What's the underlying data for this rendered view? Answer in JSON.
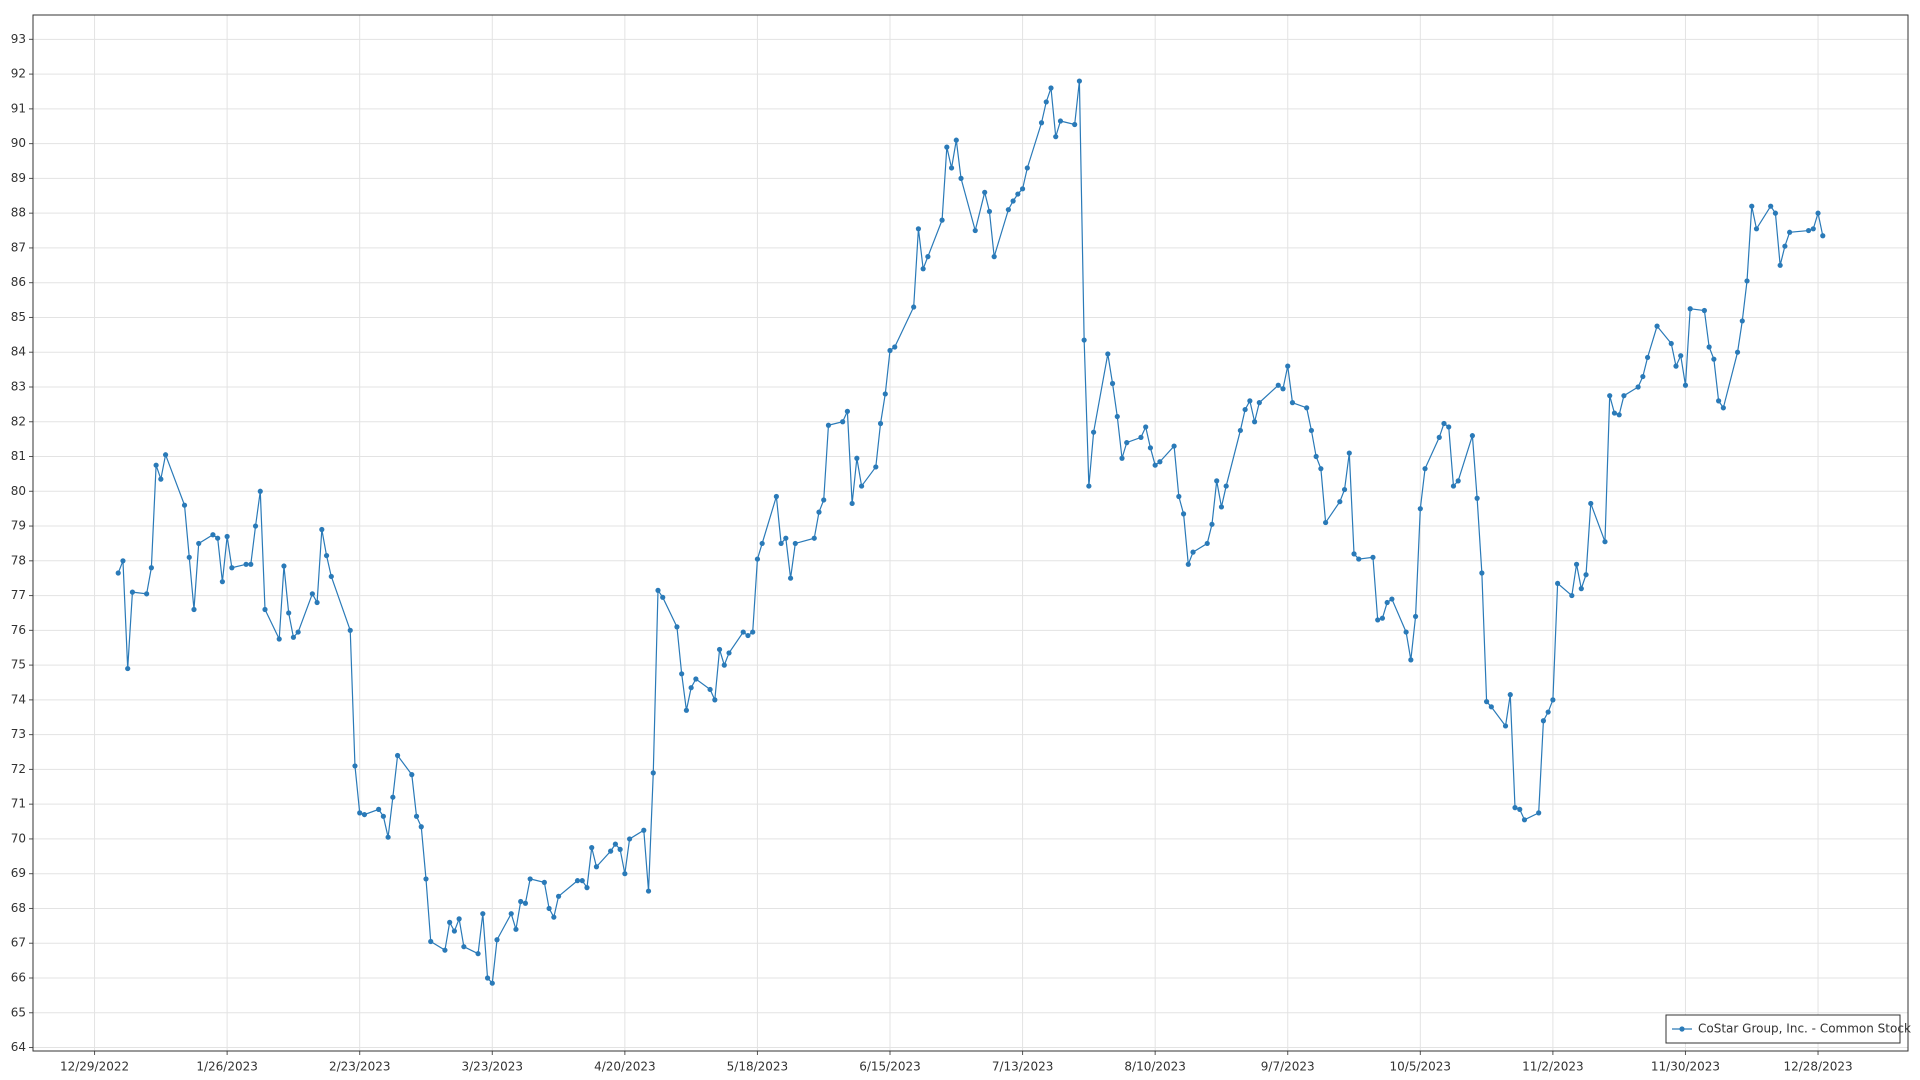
{
  "chart_data": {
    "type": "line",
    "grid": true,
    "legend": "lower right",
    "xlim": [
      "12/16/2022",
      "1/16/2024"
    ],
    "xticks": [
      "12/29/2022",
      "1/26/2023",
      "2/23/2023",
      "3/23/2023",
      "4/20/2023",
      "5/18/2023",
      "6/15/2023",
      "7/13/2023",
      "8/10/2023",
      "9/7/2023",
      "10/5/2023",
      "11/2/2023",
      "11/30/2023",
      "12/28/2023"
    ],
    "ylim": [
      63.9,
      93.7
    ],
    "yticks": [
      64,
      65,
      66,
      67,
      68,
      69,
      70,
      71,
      72,
      73,
      74,
      75,
      76,
      77,
      78,
      79,
      80,
      81,
      82,
      83,
      84,
      85,
      86,
      87,
      88,
      89,
      90,
      91,
      92,
      93
    ],
    "x": [
      "1/3/2023",
      "1/4/2023",
      "1/5/2023",
      "1/6/2023",
      "1/9/2023",
      "1/10/2023",
      "1/11/2023",
      "1/12/2023",
      "1/13/2023",
      "1/17/2023",
      "1/18/2023",
      "1/19/2023",
      "1/20/2023",
      "1/23/2023",
      "1/24/2023",
      "1/25/2023",
      "1/26/2023",
      "1/27/2023",
      "1/30/2023",
      "1/31/2023",
      "2/1/2023",
      "2/2/2023",
      "2/3/2023",
      "2/6/2023",
      "2/7/2023",
      "2/8/2023",
      "2/9/2023",
      "2/10/2023",
      "2/13/2023",
      "2/14/2023",
      "2/15/2023",
      "2/16/2023",
      "2/17/2023",
      "2/21/2023",
      "2/22/2023",
      "2/23/2023",
      "2/24/2023",
      "2/27/2023",
      "2/28/2023",
      "3/1/2023",
      "3/2/2023",
      "3/3/2023",
      "3/6/2023",
      "3/7/2023",
      "3/8/2023",
      "3/9/2023",
      "3/10/2023",
      "3/13/2023",
      "3/14/2023",
      "3/15/2023",
      "3/16/2023",
      "3/17/2023",
      "3/20/2023",
      "3/21/2023",
      "3/22/2023",
      "3/23/2023",
      "3/24/2023",
      "3/27/2023",
      "3/28/2023",
      "3/29/2023",
      "3/30/2023",
      "3/31/2023",
      "4/3/2023",
      "4/4/2023",
      "4/5/2023",
      "4/6/2023",
      "4/10/2023",
      "4/11/2023",
      "4/12/2023",
      "4/13/2023",
      "4/14/2023",
      "4/17/2023",
      "4/18/2023",
      "4/19/2023",
      "4/20/2023",
      "4/21/2023",
      "4/24/2023",
      "4/25/2023",
      "4/26/2023",
      "4/27/2023",
      "4/28/2023",
      "5/1/2023",
      "5/2/2023",
      "5/3/2023",
      "5/4/2023",
      "5/5/2023",
      "5/8/2023",
      "5/9/2023",
      "5/10/2023",
      "5/11/2023",
      "5/12/2023",
      "5/15/2023",
      "5/16/2023",
      "5/17/2023",
      "5/18/2023",
      "5/19/2023",
      "5/22/2023",
      "5/23/2023",
      "5/24/2023",
      "5/25/2023",
      "5/26/2023",
      "5/30/2023",
      "5/31/2023",
      "6/1/2023",
      "6/2/2023",
      "6/5/2023",
      "6/6/2023",
      "6/7/2023",
      "6/8/2023",
      "6/9/2023",
      "6/12/2023",
      "6/13/2023",
      "6/14/2023",
      "6/15/2023",
      "6/16/2023",
      "6/20/2023",
      "6/21/2023",
      "6/22/2023",
      "6/23/2023",
      "6/26/2023",
      "6/27/2023",
      "6/28/2023",
      "6/29/2023",
      "6/30/2023",
      "7/3/2023",
      "7/5/2023",
      "7/6/2023",
      "7/7/2023",
      "7/10/2023",
      "7/11/2023",
      "7/12/2023",
      "7/13/2023",
      "7/14/2023",
      "7/17/2023",
      "7/18/2023",
      "7/19/2023",
      "7/20/2023",
      "7/21/2023",
      "7/24/2023",
      "7/25/2023",
      "7/26/2023",
      "7/27/2023",
      "7/28/2023",
      "7/31/2023",
      "8/1/2023",
      "8/2/2023",
      "8/3/2023",
      "8/4/2023",
      "8/7/2023",
      "8/8/2023",
      "8/9/2023",
      "8/10/2023",
      "8/11/2023",
      "8/14/2023",
      "8/15/2023",
      "8/16/2023",
      "8/17/2023",
      "8/18/2023",
      "8/21/2023",
      "8/22/2023",
      "8/23/2023",
      "8/24/2023",
      "8/25/2023",
      "8/28/2023",
      "8/29/2023",
      "8/30/2023",
      "8/31/2023",
      "9/1/2023",
      "9/5/2023",
      "9/6/2023",
      "9/7/2023",
      "9/8/2023",
      "9/11/2023",
      "9/12/2023",
      "9/13/2023",
      "9/14/2023",
      "9/15/2023",
      "9/18/2023",
      "9/19/2023",
      "9/20/2023",
      "9/21/2023",
      "9/22/2023",
      "9/25/2023",
      "9/26/2023",
      "9/27/2023",
      "9/28/2023",
      "9/29/2023",
      "10/2/2023",
      "10/3/2023",
      "10/4/2023",
      "10/5/2023",
      "10/6/2023",
      "10/9/2023",
      "10/10/2023",
      "10/11/2023",
      "10/12/2023",
      "10/13/2023",
      "10/16/2023",
      "10/17/2023",
      "10/18/2023",
      "10/19/2023",
      "10/20/2023",
      "10/23/2023",
      "10/24/2023",
      "10/25/2023",
      "10/26/2023",
      "10/27/2023",
      "10/30/2023",
      "10/31/2023",
      "11/1/2023",
      "11/2/2023",
      "11/3/2023",
      "11/6/2023",
      "11/7/2023",
      "11/8/2023",
      "11/9/2023",
      "11/10/2023",
      "11/13/2023",
      "11/14/2023",
      "11/15/2023",
      "11/16/2023",
      "11/17/2023",
      "11/20/2023",
      "11/21/2023",
      "11/22/2023",
      "11/24/2023",
      "11/27/2023",
      "11/28/2023",
      "11/29/2023",
      "11/30/2023",
      "12/1/2023",
      "12/4/2023",
      "12/5/2023",
      "12/6/2023",
      "12/7/2023",
      "12/8/2023",
      "12/11/2023",
      "12/12/2023",
      "12/13/2023",
      "12/14/2023",
      "12/15/2023",
      "12/18/2023",
      "12/19/2023",
      "12/20/2023",
      "12/21/2023",
      "12/22/2023",
      "12/26/2023",
      "12/27/2023",
      "12/28/2023",
      "12/29/2023"
    ],
    "series": [
      {
        "name": "CoStar Group, Inc. - Common Stock",
        "color": "#2a7ab8",
        "values": [
          77.65,
          78.0,
          74.9,
          77.1,
          77.05,
          77.8,
          80.75,
          80.35,
          81.05,
          79.6,
          78.1,
          76.6,
          78.5,
          78.75,
          78.65,
          77.4,
          78.7,
          77.8,
          77.9,
          77.9,
          79.0,
          80.0,
          76.6,
          75.75,
          77.85,
          76.5,
          75.8,
          75.95,
          77.05,
          76.8,
          78.9,
          78.15,
          77.55,
          76.0,
          72.1,
          70.75,
          70.7,
          70.85,
          70.65,
          70.05,
          71.2,
          72.4,
          71.85,
          70.65,
          70.35,
          68.85,
          67.05,
          66.8,
          67.6,
          67.35,
          67.7,
          66.9,
          66.7,
          67.85,
          66.0,
          65.85,
          67.1,
          67.85,
          67.4,
          68.2,
          68.15,
          68.85,
          68.75,
          68.0,
          67.75,
          68.35,
          68.8,
          68.8,
          68.6,
          69.75,
          69.2,
          69.65,
          69.85,
          69.7,
          69.0,
          70.0,
          70.25,
          68.5,
          71.9,
          77.15,
          76.95,
          76.1,
          74.75,
          73.7,
          74.35,
          74.6,
          74.3,
          74.0,
          75.45,
          75.0,
          75.35,
          75.95,
          75.85,
          75.95,
          78.05,
          78.5,
          79.85,
          78.5,
          78.65,
          77.5,
          78.5,
          78.65,
          79.4,
          79.75,
          81.9,
          82.0,
          82.3,
          79.65,
          80.95,
          80.15,
          80.7,
          81.95,
          82.8,
          84.05,
          84.15,
          85.3,
          87.55,
          86.4,
          86.75,
          87.8,
          89.9,
          89.3,
          90.1,
          89.0,
          87.5,
          88.6,
          88.05,
          86.75,
          88.1,
          88.35,
          88.55,
          88.7,
          89.3,
          90.6,
          91.2,
          91.6,
          90.2,
          90.65,
          90.55,
          91.8,
          84.35,
          80.15,
          81.7,
          83.95,
          83.1,
          82.15,
          80.95,
          81.4,
          81.55,
          81.85,
          81.25,
          80.75,
          80.85,
          81.3,
          79.85,
          79.35,
          77.9,
          78.25,
          78.5,
          79.05,
          80.3,
          79.55,
          80.15,
          81.75,
          82.35,
          82.6,
          82.0,
          82.55,
          83.05,
          82.95,
          83.6,
          82.55,
          82.4,
          81.75,
          81.0,
          80.65,
          79.1,
          79.7,
          80.05,
          81.1,
          78.2,
          78.05,
          78.1,
          76.3,
          76.35,
          76.8,
          76.9,
          75.95,
          75.15,
          76.4,
          79.5,
          80.65,
          81.55,
          81.95,
          81.85,
          80.15,
          80.3,
          81.6,
          79.8,
          77.65,
          73.95,
          73.8,
          73.25,
          74.15,
          70.9,
          70.85,
          70.55,
          70.75,
          73.4,
          73.65,
          74.0,
          77.35,
          77.0,
          77.9,
          77.2,
          77.6,
          79.65,
          78.55,
          82.75,
          82.25,
          82.2,
          82.75,
          83.0,
          83.3,
          83.85,
          84.75,
          84.25,
          83.6,
          83.9,
          83.05,
          85.25,
          85.2,
          84.15,
          83.8,
          82.6,
          82.4,
          84.0,
          84.9,
          86.05,
          88.2,
          87.55,
          88.2,
          88.0,
          86.5,
          87.05,
          87.45,
          87.5,
          87.55,
          88.0,
          87.35
        ]
      }
    ]
  }
}
